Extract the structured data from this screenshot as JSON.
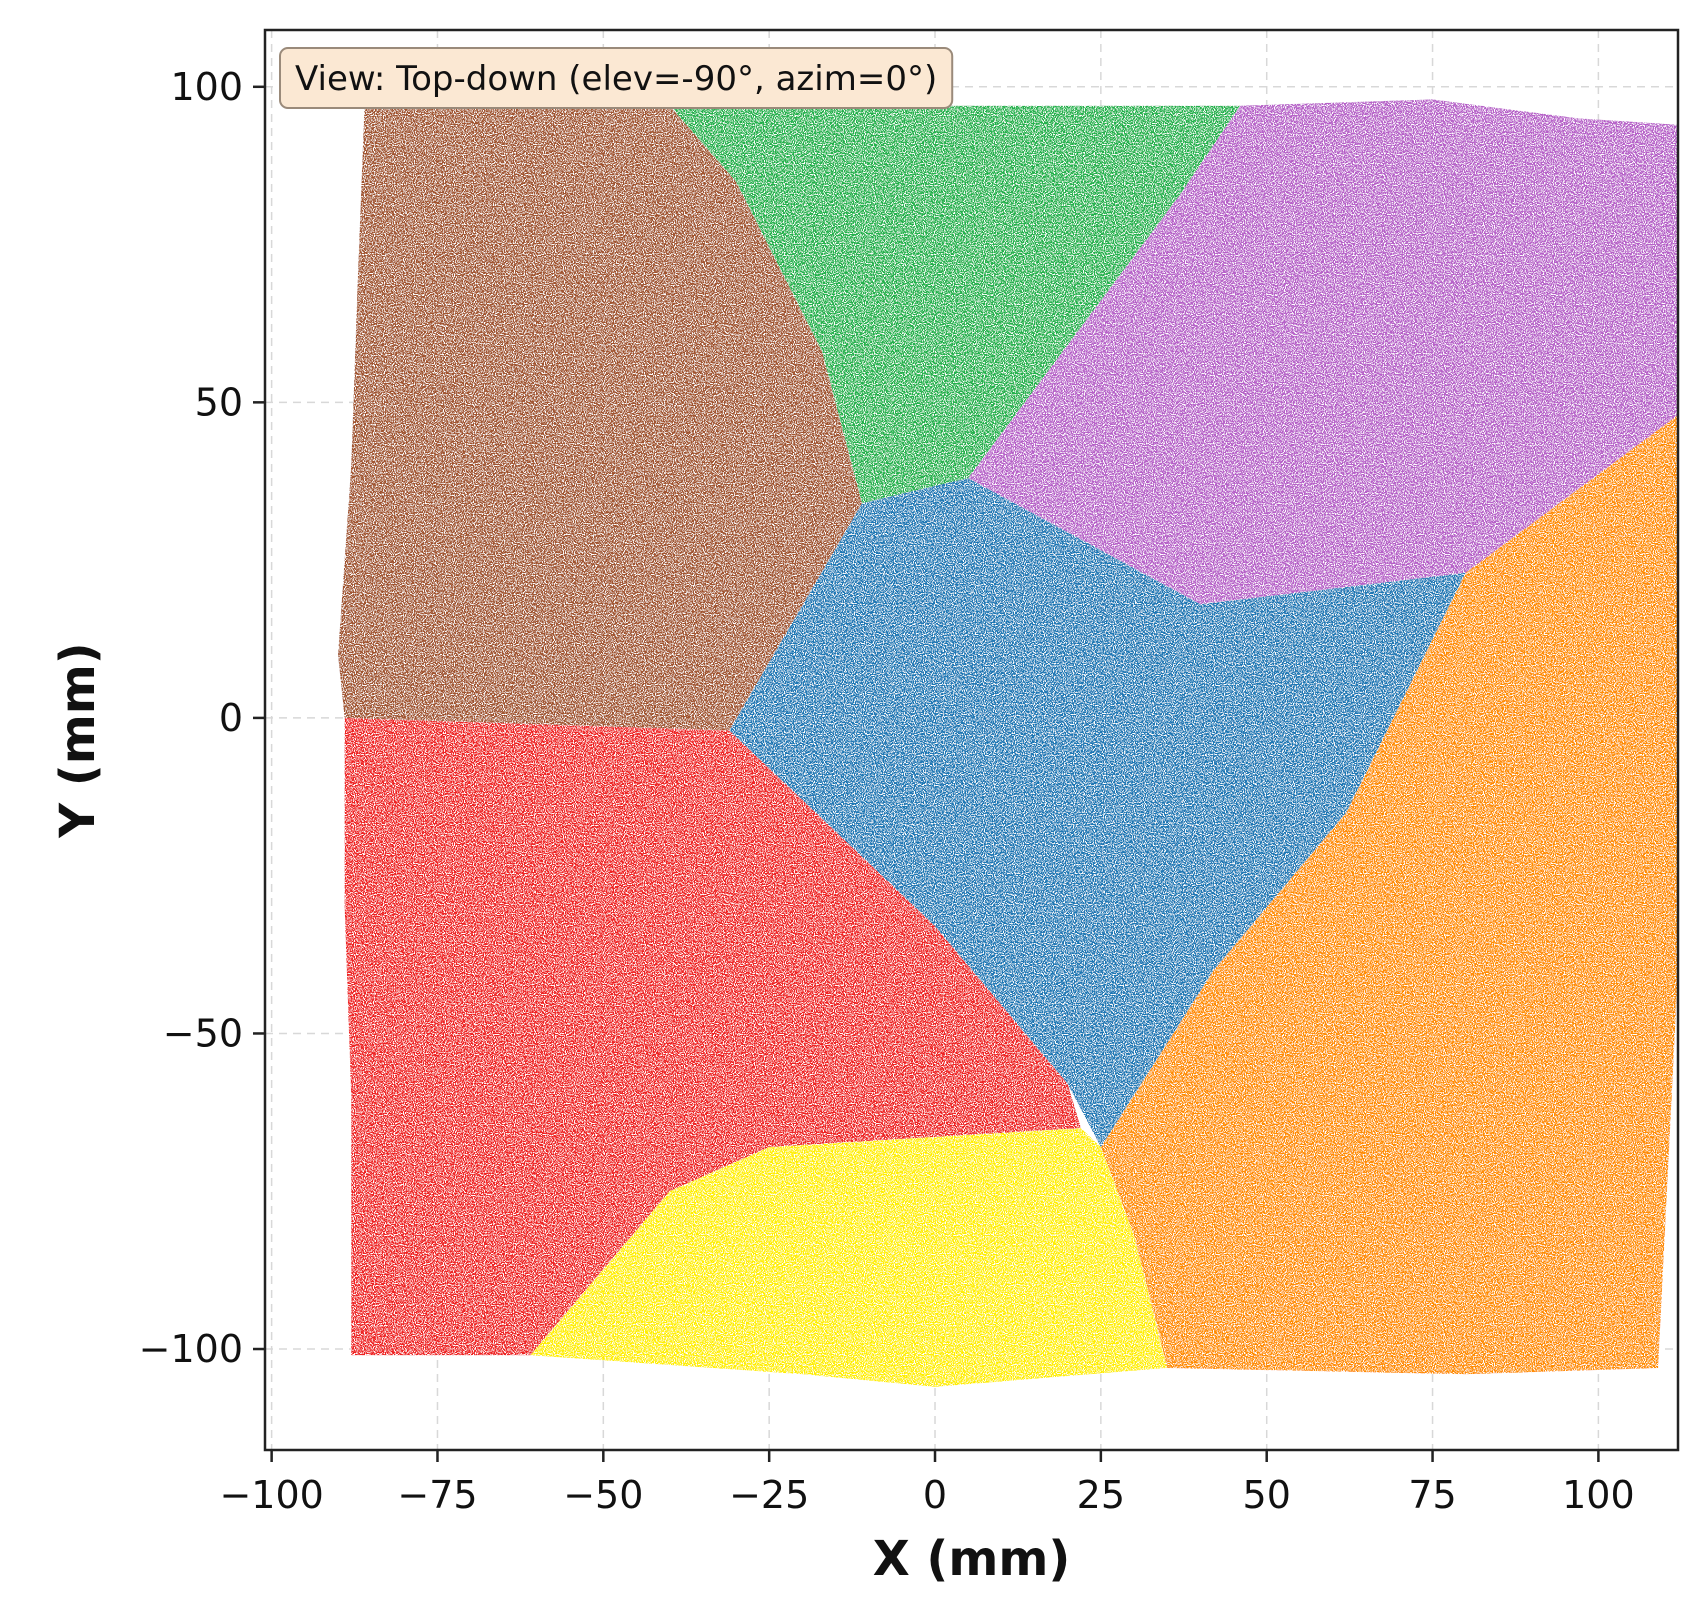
{
  "chart_data": {
    "type": "scatter",
    "title": "",
    "xlabel": "X (mm)",
    "ylabel": "Y (mm)",
    "xlim": [
      -101,
      112
    ],
    "ylim": [
      -116,
      109
    ],
    "xticks": [
      -100,
      -75,
      -50,
      -25,
      0,
      25,
      50,
      75,
      100
    ],
    "yticks": [
      -100,
      -50,
      0,
      50,
      100
    ],
    "xtick_labels": [
      "−100",
      "−75",
      "−50",
      "−25",
      "0",
      "25",
      "50",
      "75",
      "100"
    ],
    "ytick_labels": [
      "−100",
      "−50",
      "0",
      "50",
      "100"
    ],
    "grid": true,
    "annotation": "View: Top-down (elev=-90°, azim=0°)",
    "regions": [
      {
        "color": "#a0522d",
        "polygon": [
          [
            -86,
            97
          ],
          [
            -40,
            97
          ],
          [
            -30,
            85
          ],
          [
            -17,
            58
          ],
          [
            -11,
            34
          ],
          [
            -31,
            -2
          ],
          [
            -89,
            0
          ],
          [
            -90,
            10
          ],
          [
            -88,
            40
          ],
          [
            -87,
            70
          ]
        ]
      },
      {
        "color": "#22b14c",
        "polygon": [
          [
            -40,
            97
          ],
          [
            46,
            97
          ],
          [
            37,
            83
          ],
          [
            5,
            38
          ],
          [
            -11,
            34
          ],
          [
            -17,
            58
          ],
          [
            -30,
            85
          ]
        ]
      },
      {
        "color": "#b660c8",
        "polygon": [
          [
            46,
            97
          ],
          [
            75,
            98
          ],
          [
            97,
            95
          ],
          [
            112,
            94
          ],
          [
            112,
            48
          ],
          [
            80,
            23
          ],
          [
            40,
            18
          ],
          [
            5,
            38
          ],
          [
            37,
            83
          ]
        ]
      },
      {
        "color": "#1f77b4",
        "polygon": [
          [
            -11,
            34
          ],
          [
            5,
            38
          ],
          [
            40,
            18
          ],
          [
            80,
            23
          ],
          [
            62,
            -15
          ],
          [
            42,
            -40
          ],
          [
            25,
            -68
          ],
          [
            20,
            -58
          ],
          [
            0,
            -33
          ],
          [
            -15,
            -18
          ],
          [
            -31,
            -2
          ]
        ]
      },
      {
        "color": "#ff8c00",
        "polygon": [
          [
            112,
            48
          ],
          [
            112,
            -40
          ],
          [
            109,
            -103
          ],
          [
            80,
            -104
          ],
          [
            35,
            -103
          ],
          [
            30,
            -82
          ],
          [
            25,
            -68
          ],
          [
            42,
            -40
          ],
          [
            62,
            -15
          ],
          [
            80,
            23
          ]
        ]
      },
      {
        "color": "#ee2222",
        "polygon": [
          [
            -89,
            0
          ],
          [
            -31,
            -2
          ],
          [
            -15,
            -18
          ],
          [
            0,
            -33
          ],
          [
            20,
            -58
          ],
          [
            22,
            -65
          ],
          [
            -25,
            -68
          ],
          [
            -40,
            -75
          ],
          [
            -61,
            -101
          ],
          [
            -88,
            -101
          ],
          [
            -88,
            -60
          ],
          [
            -89,
            -30
          ]
        ]
      },
      {
        "color": "#ffee00",
        "polygon": [
          [
            -61,
            -101
          ],
          [
            -40,
            -75
          ],
          [
            -25,
            -68
          ],
          [
            22,
            -65
          ],
          [
            25,
            -68
          ],
          [
            30,
            -82
          ],
          [
            35,
            -103
          ],
          [
            0,
            -106
          ],
          [
            -20,
            -104
          ]
        ]
      }
    ]
  }
}
